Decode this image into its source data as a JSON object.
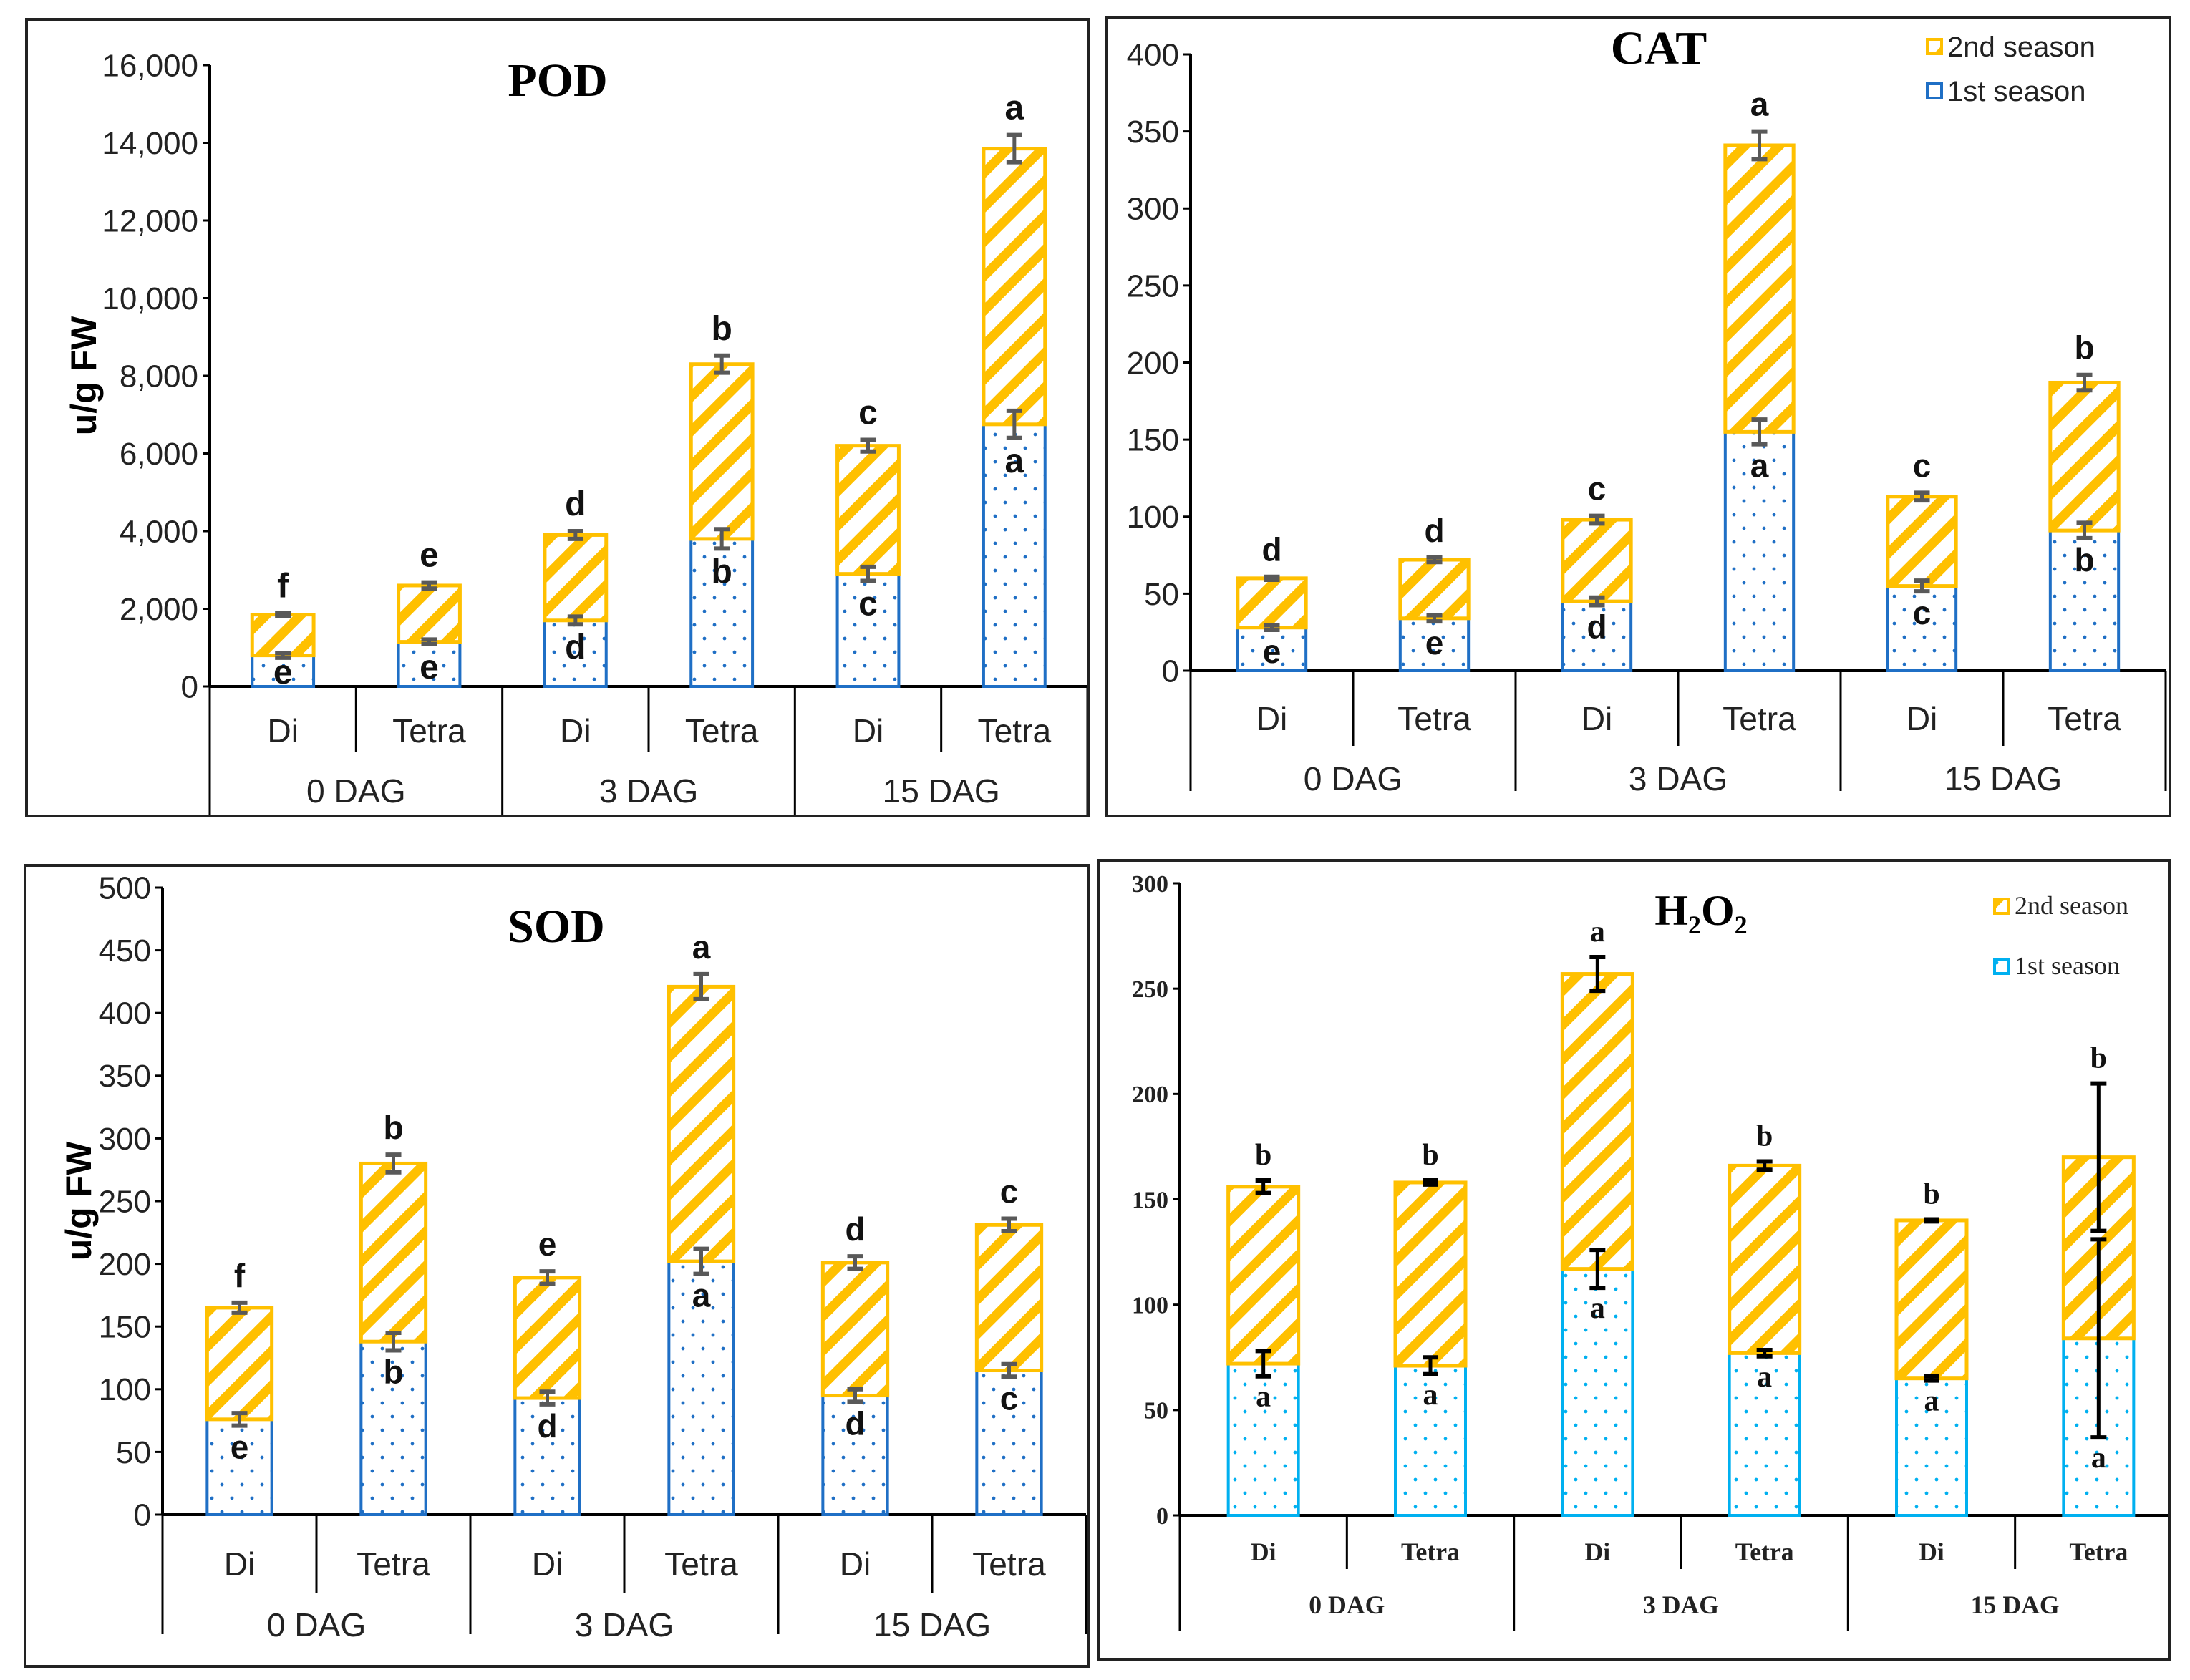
{
  "chart_data": [
    {
      "type": "bar",
      "stacked": true,
      "title": "POD",
      "ylabel": "u/g FW",
      "ylim": [
        0,
        16000
      ],
      "yticks": [
        "0",
        "2,000",
        "4,000",
        "6,000",
        "8,000",
        "10,000",
        "12,000",
        "14,000",
        "16,000"
      ],
      "ytick_values": [
        0,
        2000,
        4000,
        6000,
        8000,
        10000,
        12000,
        14000,
        16000
      ],
      "categories": [
        "Di",
        "Tetra",
        "Di",
        "Tetra",
        "Di",
        "Tetra"
      ],
      "groups": [
        "0 DAG",
        "3 DAG",
        "15 DAG"
      ],
      "legend": null,
      "series": [
        {
          "name": "1st season",
          "values": [
            800,
            1150,
            1700,
            3800,
            2900,
            6750
          ],
          "err": [
            60,
            60,
            100,
            250,
            180,
            350
          ],
          "letters": [
            "e",
            "e",
            "d",
            "b",
            "c",
            "a"
          ]
        },
        {
          "name": "2nd season",
          "values": [
            1050,
            1450,
            2200,
            4500,
            3300,
            7100
          ],
          "err": [
            40,
            80,
            100,
            220,
            150,
            350
          ],
          "letters": [
            "f",
            "e",
            "d",
            "b",
            "c",
            "a"
          ]
        }
      ]
    },
    {
      "type": "bar",
      "stacked": true,
      "title": "CAT",
      "ylabel": "",
      "ylim": [
        0,
        400
      ],
      "yticks": [
        "0",
        "50",
        "100",
        "150",
        "200",
        "250",
        "300",
        "350",
        "400"
      ],
      "ytick_values": [
        0,
        50,
        100,
        150,
        200,
        250,
        300,
        350,
        400
      ],
      "categories": [
        "Di",
        "Tetra",
        "Di",
        "Tetra",
        "Di",
        "Tetra"
      ],
      "groups": [
        "0 DAG",
        "3 DAG",
        "15 DAG"
      ],
      "legend": [
        "2nd season",
        "1st season"
      ],
      "series": [
        {
          "name": "1st season",
          "values": [
            28,
            34,
            45,
            155,
            55,
            91
          ],
          "err": [
            1.5,
            2,
            2.5,
            8,
            3.5,
            5
          ],
          "letters": [
            "e",
            "e",
            "d",
            "a",
            "c",
            "b"
          ]
        },
        {
          "name": "2nd season",
          "values": [
            32,
            38,
            53,
            186,
            58,
            96
          ],
          "err": [
            1,
            1.5,
            2.5,
            9,
            2.5,
            5
          ],
          "letters": [
            "d",
            "d",
            "c",
            "a",
            "c",
            "b"
          ]
        }
      ]
    },
    {
      "type": "bar",
      "stacked": true,
      "title": "SOD",
      "ylabel": "u/g FW",
      "ylim": [
        0,
        500
      ],
      "yticks": [
        "0",
        "50",
        "100",
        "150",
        "200",
        "250",
        "300",
        "350",
        "400",
        "450",
        "500"
      ],
      "ytick_values": [
        0,
        50,
        100,
        150,
        200,
        250,
        300,
        350,
        400,
        450,
        500
      ],
      "categories": [
        "Di",
        "Tetra",
        "Di",
        "Tetra",
        "Di",
        "Tetra"
      ],
      "groups": [
        "0 DAG",
        "3 DAG",
        "15 DAG"
      ],
      "legend": null,
      "series": [
        {
          "name": "1st season",
          "values": [
            76,
            138,
            93,
            202,
            95,
            115
          ],
          "err": [
            5,
            7,
            5,
            10,
            5,
            5
          ],
          "letters": [
            "e",
            "b",
            "d",
            "a",
            "d",
            "c"
          ]
        },
        {
          "name": "2nd season",
          "values": [
            89,
            142,
            96,
            219,
            106,
            116
          ],
          "err": [
            4,
            7,
            5,
            10,
            5,
            5
          ],
          "letters": [
            "f",
            "b",
            "e",
            "a",
            "d",
            "c"
          ]
        }
      ]
    },
    {
      "type": "bar",
      "stacked": true,
      "title": "H2O2",
      "title_sub": [
        "H",
        "2",
        "O",
        "2"
      ],
      "ylabel": "",
      "ylim": [
        0,
        300
      ],
      "yticks": [
        "0",
        "50",
        "100",
        "150",
        "200",
        "250",
        "300"
      ],
      "ytick_values": [
        0,
        50,
        100,
        150,
        200,
        250,
        300
      ],
      "categories": [
        "Di",
        "Tetra",
        "Di",
        "Tetra",
        "Di",
        "Tetra"
      ],
      "groups": [
        "0 DAG",
        "3 DAG",
        "15 DAG"
      ],
      "legend": [
        "2nd season",
        "1st season"
      ],
      "series": [
        {
          "name": "1st season",
          "values": [
            72,
            71,
            117,
            77,
            65,
            84
          ],
          "err": [
            6,
            4,
            9,
            1.5,
            1,
            47
          ],
          "letters": [
            "a",
            "a",
            "a",
            "a",
            "a",
            "a"
          ]
        },
        {
          "name": "2nd season",
          "values": [
            84,
            87,
            140,
            89,
            75,
            86
          ],
          "err": [
            3,
            1,
            8,
            2,
            0.5,
            35
          ],
          "letters": [
            "b",
            "b",
            "a",
            "b",
            "b",
            "b"
          ]
        }
      ]
    }
  ],
  "colors": {
    "season2": "#ffc000",
    "season1_pod": "#1f6fc5",
    "season1_h2o2": "#00b0f0",
    "axis": "#000000",
    "errbar": "#595959"
  }
}
